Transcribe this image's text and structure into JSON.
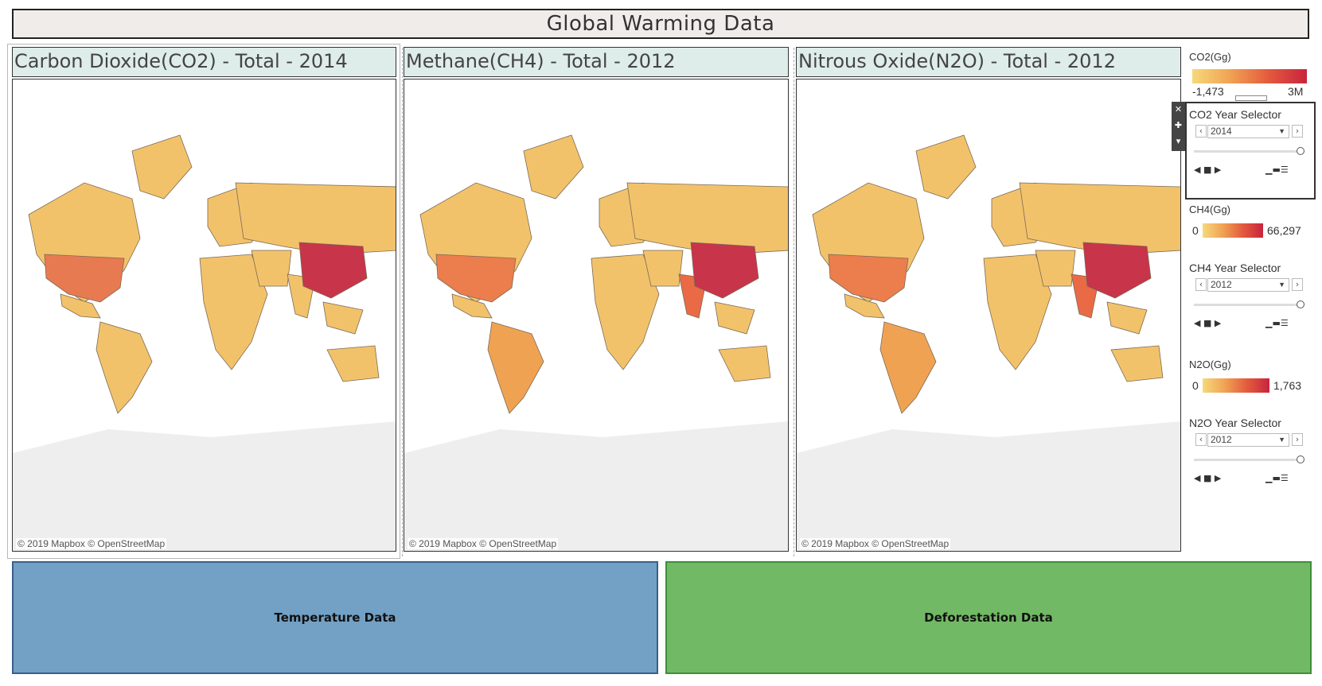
{
  "dashboard": {
    "title": "Global Warming Data"
  },
  "maps": [
    {
      "title": "Carbon Dioxide(CO2) - Total - 2014",
      "attribution": "© 2019 Mapbox © OpenStreetMap"
    },
    {
      "title": "Methane(CH4) - Total - 2012",
      "attribution": "© 2019 Mapbox © OpenStreetMap"
    },
    {
      "title": "Nitrous Oxide(N2O) - Total - 2012",
      "attribution": "© 2019 Mapbox © OpenStreetMap"
    }
  ],
  "legends": {
    "co2": {
      "title": "CO2(Gg)",
      "min": "-1,473",
      "max": "3M"
    },
    "ch4": {
      "title": "CH4(Gg)",
      "min": "0",
      "max": "66,297"
    },
    "n2o": {
      "title": "N2O(Gg)",
      "min": "0",
      "max": "1,763"
    }
  },
  "selectors": {
    "co2": {
      "title": "CO2 Year Selector",
      "value": "2014"
    },
    "ch4": {
      "title": "CH4 Year Selector",
      "value": "2012"
    },
    "n2o": {
      "title": "N2O Year Selector",
      "value": "2012"
    }
  },
  "colors": {
    "ramp_low": "#f6d97a",
    "ramp_high": "#c8243d",
    "china": "#c8344a",
    "land": "#f2c26b",
    "temperature_btn": "#73a0c5",
    "deforestation_btn": "#72b965"
  },
  "icons": [
    "close-icon",
    "pin-icon",
    "dropdown-icon",
    "step-back-icon",
    "stop-icon",
    "step-forward-icon",
    "speed-icon"
  ],
  "buttons": {
    "temperature": "Temperature Data",
    "deforestation": "Deforestation Data"
  }
}
